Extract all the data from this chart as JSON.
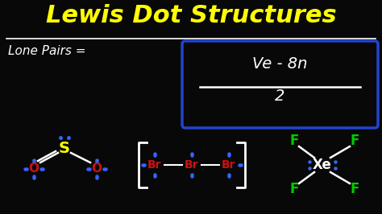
{
  "bg_color": "#080808",
  "title": "Lewis Dot Structures",
  "title_color": "#ffff00",
  "title_fontsize": 22,
  "underline_color": "#ffffff",
  "lone_pairs_text": "Lone Pairs =",
  "lone_pairs_color": "#ffffff",
  "lone_pairs_fontsize": 11,
  "formula_numerator": "Ve - 8n",
  "formula_denominator": "2",
  "formula_color": "#ffffff",
  "formula_box_color": "#2244cc",
  "formula_fontsize": 14,
  "s_color": "#ffff00",
  "o_color": "#cc1111",
  "br_color": "#cc1111",
  "xe_color": "#ffffff",
  "f_color": "#00cc00",
  "dot_color": "#3366ff",
  "bond_color": "#ffffff",
  "bracket_color": "#ffffff",
  "fig_w": 4.74,
  "fig_h": 2.66,
  "dpi": 100
}
